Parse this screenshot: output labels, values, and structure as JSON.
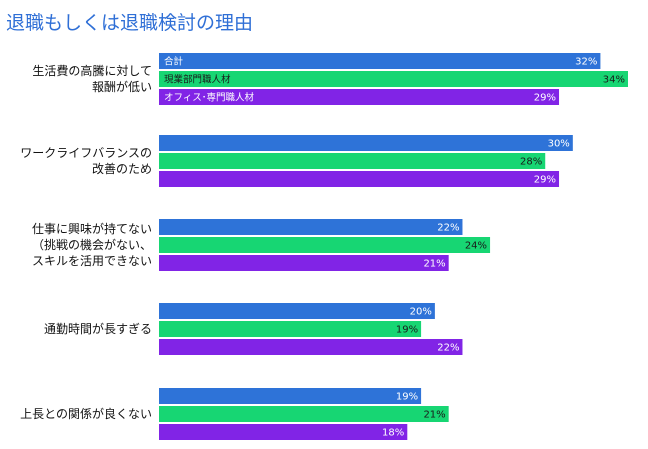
{
  "chart_data": {
    "type": "bar",
    "orientation": "horizontal",
    "title": "退職もしくは退職検討の理由",
    "xlabel": "",
    "ylabel": "",
    "xlim": [
      0,
      34
    ],
    "grid": false,
    "legend": "inline-first-group",
    "categories": [
      [
        "生活費の高騰に対して",
        "報酬が低い"
      ],
      [
        "ワークライフバランスの",
        "改善のため"
      ],
      [
        "仕事に興味が持てない",
        "（挑戦の機会がない、",
        "スキルを活用できない"
      ],
      [
        "通勤時間が長すぎる"
      ],
      [
        "上長との関係が良くない"
      ]
    ],
    "series": [
      {
        "name": "合計",
        "color": "#2e73d8",
        "values": [
          32,
          30,
          22,
          20,
          19
        ]
      },
      {
        "name": "現業部門職人材",
        "color": "#17d673",
        "values": [
          34,
          28,
          24,
          19,
          21
        ]
      },
      {
        "name": "オフィス･専門職人材",
        "color": "#8124e6",
        "values": [
          29,
          29,
          21,
          22,
          18
        ]
      }
    ]
  }
}
